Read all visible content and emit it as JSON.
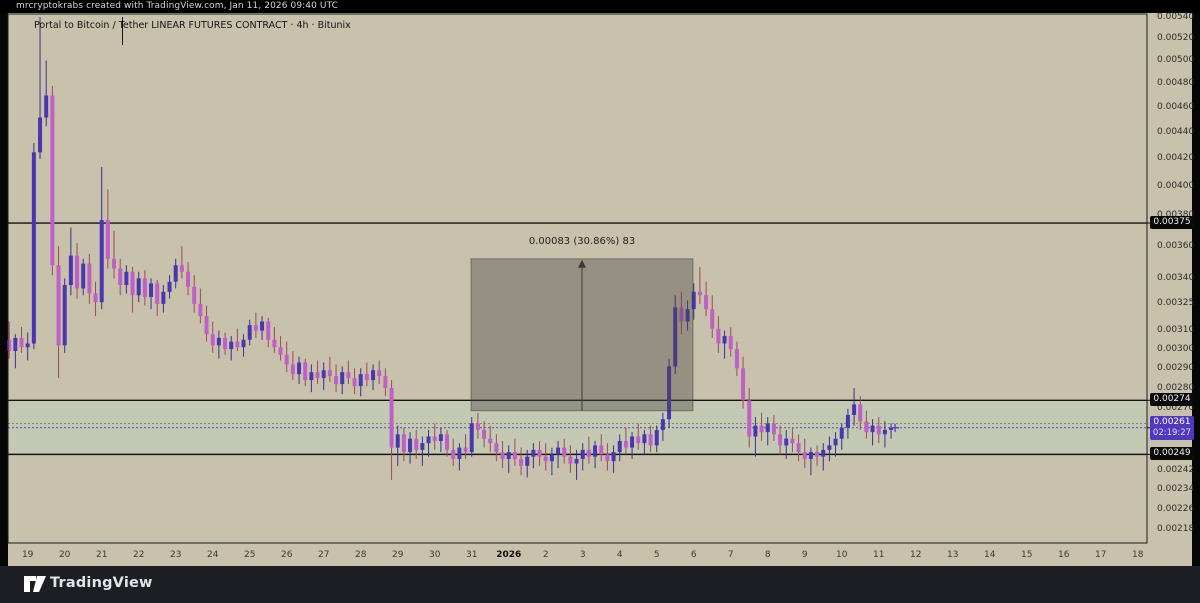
{
  "top_bar": {
    "attribution": "mrcryptokrabs created with TradingView.com, Jan 11, 2026 09:40 UTC"
  },
  "chart_header": {
    "title": "Portal to Bitcoin / Tether LINEAR FUTURES CONTRACT · 4h · Bitunix"
  },
  "footer": {
    "brand": "TradingView"
  },
  "price_labels": {
    "level_labels": [
      "0.00375",
      "0.00274",
      "0.00249"
    ],
    "current": {
      "price_text": "0.00261",
      "countdown": "02:19:27"
    }
  },
  "colors": {
    "panel_bg": "#c8c1ac",
    "band_fill": "#c4c9b3",
    "up_body": "#4a36b0",
    "down_body": "#c05fc5",
    "up_wick": "#3b2f8f",
    "down_wick": "#9d4b58",
    "level_line": "#141414",
    "measure_fill": "rgba(72,70,66,0.40)",
    "measure_border": "rgba(45,45,45,0.45)",
    "dotted_olive": "#8a8f55",
    "dotted_blue": "#5a45c8",
    "current_label_bg": "#5038c0",
    "label_bg": "#0a0a0a",
    "frame": "#1a1a1a"
  },
  "chart_data": {
    "type": "candlestick",
    "symbol": "Portal to Bitcoin / Tether",
    "contract": "LINEAR FUTURES CONTRACT",
    "interval": "4h",
    "exchange": "Bitunix",
    "scale": "log",
    "y_axis_ticks": [
      "0.00540",
      "0.00520",
      "0.00500",
      "0.00480",
      "0.00460",
      "0.00440",
      "0.00420",
      "0.00400",
      "0.00380",
      "0.00360",
      "0.00340",
      "0.00325",
      "0.00310",
      "0.00300",
      "0.00290",
      "0.00280",
      "0.00270",
      "0.00242",
      "0.00234",
      "0.00226",
      "0.00218"
    ],
    "x_axis_ticks": [
      "19",
      "20",
      "21",
      "22",
      "23",
      "24",
      "25",
      "26",
      "27",
      "28",
      "29",
      "30",
      "31",
      "2026",
      "2",
      "3",
      "4",
      "5",
      "6",
      "7",
      "8",
      "9",
      "10",
      "11",
      "12",
      "13",
      "14",
      "15",
      "16",
      "17",
      "18"
    ],
    "x_axis_bold_tick": "2026",
    "levels": [
      0.00375,
      0.00274,
      0.00249
    ],
    "band": {
      "top": 0.00274,
      "bottom": 0.00249
    },
    "dotted_levels": [
      {
        "price": 0.00263,
        "color_key": "dotted_olive"
      },
      {
        "price": 0.00261,
        "color_key": "dotted_blue"
      }
    ],
    "current_price": 0.00261,
    "countdown": "02:19:27",
    "measure": {
      "label": "0.00083 (30.86%) 83",
      "from_price": 0.00269,
      "to_price": 0.00352,
      "change": 0.00083,
      "change_pct": 30.86,
      "bars": 83,
      "start_tick": "31",
      "end_tick": "6"
    },
    "candles_per_day": 6,
    "first_candle": "Dec 18 12:00",
    "candles_ohlc": [
      [
        0.00305,
        0.00315,
        0.00295,
        0.00299
      ],
      [
        0.00299,
        0.00308,
        0.0029,
        0.00306
      ],
      [
        0.00306,
        0.00312,
        0.00298,
        0.00301
      ],
      [
        0.00301,
        0.00309,
        0.00294,
        0.00303
      ],
      [
        0.00303,
        0.00432,
        0.003,
        0.00425
      ],
      [
        0.00425,
        0.0054,
        0.0042,
        0.00452
      ],
      [
        0.00452,
        0.005,
        0.00445,
        0.0047
      ],
      [
        0.0047,
        0.00478,
        0.00342,
        0.00348
      ],
      [
        0.00348,
        0.0036,
        0.00285,
        0.00302
      ],
      [
        0.00302,
        0.0034,
        0.00298,
        0.00336
      ],
      [
        0.00336,
        0.00372,
        0.0033,
        0.00354
      ],
      [
        0.00354,
        0.00362,
        0.00328,
        0.00334
      ],
      [
        0.00334,
        0.00352,
        0.0033,
        0.00349
      ],
      [
        0.00349,
        0.00355,
        0.00325,
        0.00331
      ],
      [
        0.00331,
        0.00338,
        0.00318,
        0.00326
      ],
      [
        0.00326,
        0.00414,
        0.00322,
        0.00377
      ],
      [
        0.00377,
        0.00398,
        0.00346,
        0.00352
      ],
      [
        0.00352,
        0.0037,
        0.0034,
        0.00346
      ],
      [
        0.00346,
        0.00352,
        0.0033,
        0.00336
      ],
      [
        0.00336,
        0.00348,
        0.00331,
        0.00344
      ],
      [
        0.00344,
        0.00347,
        0.0032,
        0.0033
      ],
      [
        0.0033,
        0.00344,
        0.00326,
        0.0034
      ],
      [
        0.0034,
        0.00345,
        0.00324,
        0.00329
      ],
      [
        0.00329,
        0.0034,
        0.00322,
        0.00337
      ],
      [
        0.00337,
        0.00339,
        0.00318,
        0.00325
      ],
      [
        0.00325,
        0.00336,
        0.0032,
        0.00332
      ],
      [
        0.00332,
        0.00342,
        0.00328,
        0.00338
      ],
      [
        0.00338,
        0.00352,
        0.00334,
        0.00348
      ],
      [
        0.00348,
        0.0036,
        0.0034,
        0.00344
      ],
      [
        0.00344,
        0.0035,
        0.0033,
        0.00335
      ],
      [
        0.00335,
        0.00342,
        0.0032,
        0.00325
      ],
      [
        0.00325,
        0.00334,
        0.00314,
        0.00318
      ],
      [
        0.00318,
        0.00324,
        0.00304,
        0.00308
      ],
      [
        0.00308,
        0.00315,
        0.00298,
        0.00302
      ],
      [
        0.00302,
        0.0031,
        0.00295,
        0.00306
      ],
      [
        0.00306,
        0.00309,
        0.00297,
        0.003
      ],
      [
        0.003,
        0.00307,
        0.00294,
        0.00304
      ],
      [
        0.00304,
        0.00311,
        0.00299,
        0.00301
      ],
      [
        0.00301,
        0.00308,
        0.00296,
        0.00305
      ],
      [
        0.00305,
        0.00316,
        0.00302,
        0.00313
      ],
      [
        0.00313,
        0.0032,
        0.00306,
        0.0031
      ],
      [
        0.0031,
        0.00318,
        0.00305,
        0.00315
      ],
      [
        0.00315,
        0.00317,
        0.00301,
        0.00305
      ],
      [
        0.00305,
        0.00312,
        0.00298,
        0.00301
      ],
      [
        0.00301,
        0.00307,
        0.00294,
        0.00297
      ],
      [
        0.00297,
        0.00304,
        0.00288,
        0.00292
      ],
      [
        0.00292,
        0.00299,
        0.00284,
        0.00287
      ],
      [
        0.00287,
        0.00296,
        0.00282,
        0.00293
      ],
      [
        0.00293,
        0.00295,
        0.00281,
        0.00284
      ],
      [
        0.00284,
        0.00292,
        0.00278,
        0.00288
      ],
      [
        0.00288,
        0.00294,
        0.00282,
        0.00285
      ],
      [
        0.00285,
        0.00293,
        0.00279,
        0.00289
      ],
      [
        0.00289,
        0.00296,
        0.00283,
        0.00286
      ],
      [
        0.00286,
        0.00292,
        0.00278,
        0.00282
      ],
      [
        0.00282,
        0.00291,
        0.00277,
        0.00288
      ],
      [
        0.00288,
        0.00294,
        0.00282,
        0.00285
      ],
      [
        0.00285,
        0.0029,
        0.00277,
        0.00281
      ],
      [
        0.00281,
        0.0029,
        0.00276,
        0.00287
      ],
      [
        0.00287,
        0.00293,
        0.00281,
        0.00284
      ],
      [
        0.00284,
        0.00292,
        0.00279,
        0.00289
      ],
      [
        0.00289,
        0.00294,
        0.00282,
        0.00286
      ],
      [
        0.00286,
        0.0029,
        0.00276,
        0.0028
      ],
      [
        0.0028,
        0.00284,
        0.00238,
        0.00252
      ],
      [
        0.00252,
        0.00262,
        0.00244,
        0.00258
      ],
      [
        0.00258,
        0.00261,
        0.00246,
        0.0025
      ],
      [
        0.0025,
        0.00259,
        0.00245,
        0.00256
      ],
      [
        0.00256,
        0.0026,
        0.00247,
        0.00251
      ],
      [
        0.00251,
        0.00257,
        0.00244,
        0.00254
      ],
      [
        0.00254,
        0.0026,
        0.00248,
        0.00257
      ],
      [
        0.00257,
        0.00263,
        0.00251,
        0.00255
      ],
      [
        0.00255,
        0.00261,
        0.0025,
        0.00258
      ],
      [
        0.00258,
        0.0026,
        0.00248,
        0.00251
      ],
      [
        0.00251,
        0.00256,
        0.00244,
        0.00247
      ],
      [
        0.00247,
        0.00254,
        0.00242,
        0.00252
      ],
      [
        0.00252,
        0.00258,
        0.00247,
        0.0025
      ],
      [
        0.0025,
        0.00266,
        0.00248,
        0.00263
      ],
      [
        0.00263,
        0.00268,
        0.00256,
        0.0026
      ],
      [
        0.0026,
        0.00264,
        0.00252,
        0.00256
      ],
      [
        0.00256,
        0.00262,
        0.0025,
        0.00254
      ],
      [
        0.00254,
        0.00258,
        0.00246,
        0.0025
      ],
      [
        0.0025,
        0.00255,
        0.00243,
        0.00247
      ],
      [
        0.00247,
        0.00253,
        0.00241,
        0.0025
      ],
      [
        0.0025,
        0.00256,
        0.00244,
        0.00247
      ],
      [
        0.00247,
        0.00252,
        0.0024,
        0.00244
      ],
      [
        0.00244,
        0.00251,
        0.00239,
        0.00248
      ],
      [
        0.00248,
        0.00254,
        0.00243,
        0.00251
      ],
      [
        0.00251,
        0.00255,
        0.00244,
        0.00248
      ],
      [
        0.00248,
        0.00254,
        0.00242,
        0.00246
      ],
      [
        0.00246,
        0.00252,
        0.0024,
        0.00249
      ],
      [
        0.00249,
        0.00255,
        0.00243,
        0.00252
      ],
      [
        0.00252,
        0.00256,
        0.00245,
        0.00248
      ],
      [
        0.00248,
        0.00253,
        0.00241,
        0.00245
      ],
      [
        0.00245,
        0.00251,
        0.00238,
        0.00247
      ],
      [
        0.00247,
        0.00254,
        0.00242,
        0.00251
      ],
      [
        0.00251,
        0.00257,
        0.00245,
        0.00248
      ],
      [
        0.00248,
        0.00255,
        0.00243,
        0.00253
      ],
      [
        0.00253,
        0.00258,
        0.00246,
        0.00249
      ],
      [
        0.00249,
        0.00254,
        0.00242,
        0.00246
      ],
      [
        0.00246,
        0.00253,
        0.00241,
        0.0025
      ],
      [
        0.0025,
        0.00258,
        0.00246,
        0.00255
      ],
      [
        0.00255,
        0.00261,
        0.00249,
        0.00252
      ],
      [
        0.00252,
        0.00259,
        0.00247,
        0.00257
      ],
      [
        0.00257,
        0.00263,
        0.00251,
        0.00254
      ],
      [
        0.00254,
        0.0026,
        0.00249,
        0.00258
      ],
      [
        0.00258,
        0.00262,
        0.0025,
        0.00253
      ],
      [
        0.00253,
        0.00262,
        0.0025,
        0.0026
      ],
      [
        0.0026,
        0.00268,
        0.00255,
        0.00265
      ],
      [
        0.00265,
        0.00295,
        0.00261,
        0.00291
      ],
      [
        0.00291,
        0.0033,
        0.00287,
        0.00323
      ],
      [
        0.00323,
        0.00332,
        0.00308,
        0.00315
      ],
      [
        0.00315,
        0.00327,
        0.0031,
        0.00322
      ],
      [
        0.00322,
        0.00337,
        0.00316,
        0.00332
      ],
      [
        0.00332,
        0.00347,
        0.00325,
        0.0033
      ],
      [
        0.0033,
        0.00338,
        0.00318,
        0.00322
      ],
      [
        0.00322,
        0.0033,
        0.00306,
        0.00311
      ],
      [
        0.00311,
        0.00318,
        0.00298,
        0.00303
      ],
      [
        0.00303,
        0.0031,
        0.00295,
        0.00307
      ],
      [
        0.00307,
        0.00312,
        0.00296,
        0.003
      ],
      [
        0.003,
        0.00304,
        0.00286,
        0.0029
      ],
      [
        0.0029,
        0.00296,
        0.0027,
        0.00274
      ],
      [
        0.00274,
        0.0028,
        0.00252,
        0.00257
      ],
      [
        0.00257,
        0.00266,
        0.00248,
        0.00262
      ],
      [
        0.00262,
        0.00268,
        0.00255,
        0.00259
      ],
      [
        0.00259,
        0.00266,
        0.00253,
        0.00263
      ],
      [
        0.00263,
        0.00267,
        0.00255,
        0.00258
      ],
      [
        0.00258,
        0.00262,
        0.00249,
        0.00253
      ],
      [
        0.00253,
        0.0026,
        0.00247,
        0.00256
      ],
      [
        0.00256,
        0.00261,
        0.0025,
        0.00254
      ],
      [
        0.00254,
        0.00258,
        0.00246,
        0.0025
      ],
      [
        0.0025,
        0.00256,
        0.00243,
        0.00247
      ],
      [
        0.00247,
        0.00252,
        0.0024,
        0.0025
      ],
      [
        0.0025,
        0.00253,
        0.00244,
        0.00248
      ],
      [
        0.00248,
        0.00254,
        0.00242,
        0.00251
      ],
      [
        0.00251,
        0.00257,
        0.00246,
        0.00253
      ],
      [
        0.00253,
        0.00259,
        0.00248,
        0.00256
      ],
      [
        0.00256,
        0.00263,
        0.00251,
        0.00261
      ],
      [
        0.00261,
        0.0027,
        0.00256,
        0.00267
      ],
      [
        0.00267,
        0.0028,
        0.00262,
        0.00272
      ],
      [
        0.00272,
        0.00276,
        0.0026,
        0.00264
      ],
      [
        0.00264,
        0.00269,
        0.00256,
        0.00259
      ],
      [
        0.00259,
        0.00265,
        0.00253,
        0.00262
      ],
      [
        0.00262,
        0.00266,
        0.00254,
        0.00258
      ],
      [
        0.00258,
        0.00264,
        0.00252,
        0.0026
      ],
      [
        0.0026,
        0.00263,
        0.00256,
        0.00261
      ]
    ]
  }
}
